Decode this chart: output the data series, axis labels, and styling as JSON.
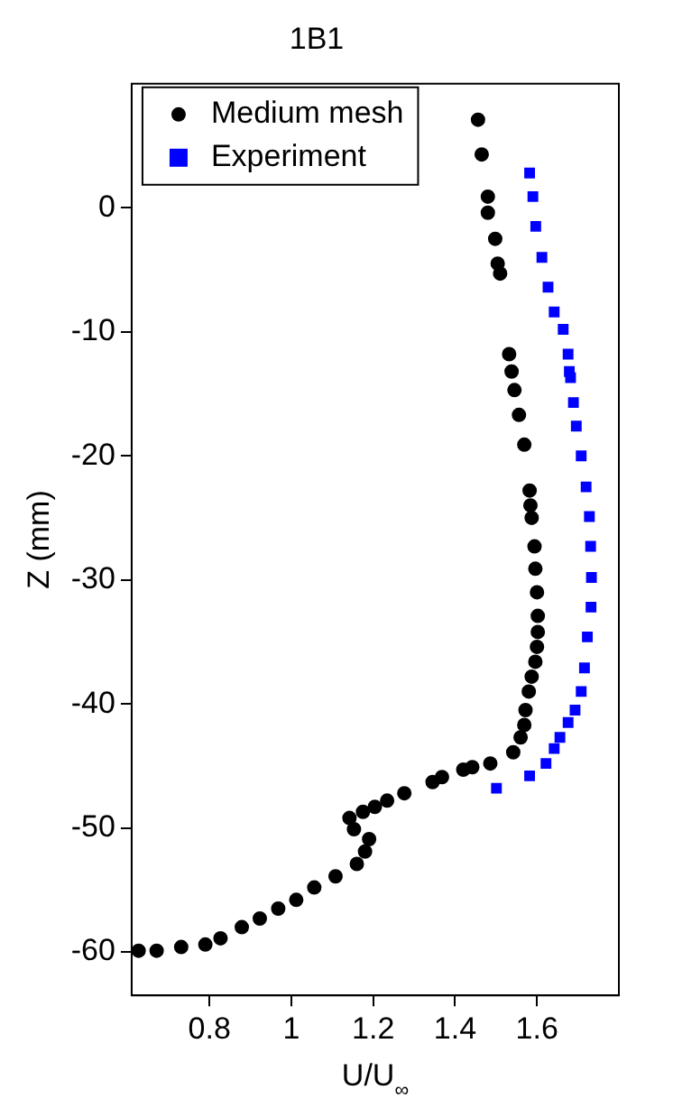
{
  "chart_data": {
    "type": "scatter",
    "title": "1B1",
    "xlabel": "U/U$_{∞}$",
    "ylabel": "Z (mm)",
    "xlim": [
      0.61,
      1.8
    ],
    "ylim": [
      -63.5,
      10
    ],
    "xticks": [
      0.8,
      1,
      1.2,
      1.4,
      1.6
    ],
    "yticks": [
      -60,
      -50,
      -40,
      -30,
      -20,
      -10,
      0
    ],
    "grid": false,
    "legend": "top left",
    "series": [
      {
        "name": "Medium mesh",
        "color": "#000000",
        "marker": "circle",
        "x": [
          1.456,
          1.465,
          1.48,
          1.48,
          1.498,
          1.504,
          1.51,
          1.532,
          1.538,
          1.545,
          1.556,
          1.569,
          1.582,
          1.584,
          1.587,
          1.594,
          1.596,
          1.6,
          1.602,
          1.602,
          1.6,
          1.596,
          1.587,
          1.58,
          1.572,
          1.569,
          1.56,
          1.542,
          1.486,
          1.442,
          1.42,
          1.368,
          1.345,
          1.276,
          1.234,
          1.204,
          1.175,
          1.142,
          1.153,
          1.19,
          1.18,
          1.16,
          1.108,
          1.056,
          1.012,
          0.968,
          0.923,
          0.879,
          0.827,
          0.79,
          0.731,
          0.671,
          0.627
        ],
        "values": [
          7.1,
          4.3,
          0.9,
          -0.4,
          -2.5,
          -4.5,
          -5.3,
          -11.8,
          -13.2,
          -14.7,
          -16.7,
          -19.1,
          -22.8,
          -24.0,
          -25.0,
          -27.3,
          -29.1,
          -31.0,
          -32.9,
          -34.2,
          -35.4,
          -36.6,
          -37.8,
          -39.0,
          -40.5,
          -41.7,
          -42.7,
          -43.9,
          -44.8,
          -45.1,
          -45.3,
          -45.9,
          -46.3,
          -47.2,
          -47.8,
          -48.3,
          -48.7,
          -49.2,
          -50.1,
          -50.9,
          -51.9,
          -52.9,
          -53.9,
          -54.8,
          -55.8,
          -56.5,
          -57.3,
          -58.0,
          -58.9,
          -59.4,
          -59.6,
          -59.9,
          -59.9
        ]
      },
      {
        "name": "Experiment",
        "color": "#0000ff",
        "marker": "square",
        "x": [
          1.582,
          1.59,
          1.597,
          1.612,
          1.627,
          1.642,
          1.664,
          1.676,
          1.679,
          1.682,
          1.689,
          1.696,
          1.708,
          1.72,
          1.728,
          1.731,
          1.733,
          1.732,
          1.723,
          1.716,
          1.708,
          1.693,
          1.676,
          1.656,
          1.642,
          1.622,
          1.582,
          1.501
        ],
        "values": [
          2.8,
          0.9,
          -1.5,
          -4.0,
          -6.4,
          -8.4,
          -9.8,
          -11.8,
          -13.2,
          -13.7,
          -15.7,
          -17.6,
          -20.0,
          -22.5,
          -24.9,
          -27.3,
          -29.8,
          -32.2,
          -34.6,
          -37.1,
          -39.0,
          -40.5,
          -41.5,
          -42.7,
          -43.6,
          -44.8,
          -45.8,
          -46.8
        ]
      }
    ]
  }
}
